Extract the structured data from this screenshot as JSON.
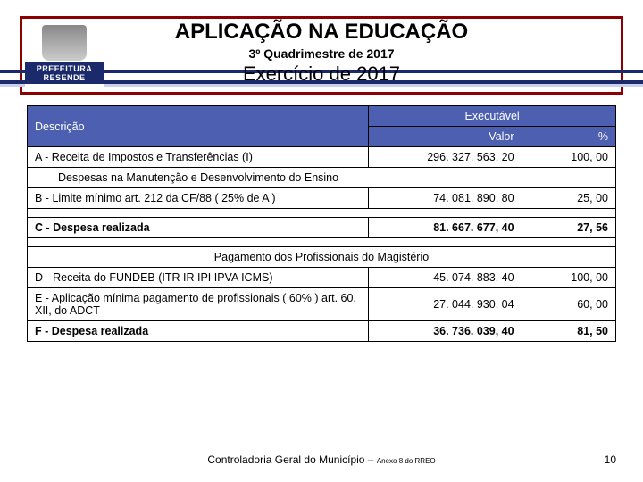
{
  "header": {
    "logo_line1": "PREFEITURA",
    "logo_line2": "RESENDE",
    "title": "APLICAÇÃO NA EDUCAÇÃO",
    "subtitle": "3º Quadrimestre de 2017",
    "exercise": "Exercício de 2017"
  },
  "table": {
    "head_desc": "Descrição",
    "head_exec": "Executável",
    "head_valor": "Valor",
    "head_pct": "%",
    "rows": [
      {
        "type": "data",
        "desc": "A  -  Receita de Impostos e Transferências (I)",
        "valor": "296. 327. 563, 20",
        "pct": "100, 00"
      },
      {
        "type": "section",
        "desc": "Despesas na Manutenção e Desenvolvimento do Ensino",
        "indent": true
      },
      {
        "type": "data",
        "desc": "B  -   Limite mínimo art. 212 da CF/88 ( 25% de A )",
        "valor": "74. 081. 890, 80",
        "pct": "25, 00"
      },
      {
        "type": "empty"
      },
      {
        "type": "data",
        "bold": true,
        "desc": "C  -  Despesa realizada",
        "valor": "81. 667. 677, 40",
        "pct": "27, 56"
      },
      {
        "type": "empty"
      },
      {
        "type": "section",
        "desc": "Pagamento dos Profissionais do Magistério",
        "center": true
      },
      {
        "type": "data",
        "desc": "D  -  Receita do FUNDEB (ITR IR IPI IPVA ICMS)",
        "valor": "45. 074. 883, 40",
        "pct": "100, 00"
      },
      {
        "type": "data",
        "desc": "E  -  Aplicação mínima pagamento de profissionais ( 60% )                     art. 60, XII, do ADCT",
        "valor": "27. 044. 930, 04",
        "pct": "60, 00"
      },
      {
        "type": "data",
        "bold": true,
        "desc": "F -    Despesa realizada",
        "valor": "36. 736. 039, 40",
        "pct": "81, 50"
      }
    ]
  },
  "footer": {
    "text": "Controladoria Geral do Município – ",
    "small": "Anexo 8 do RREO",
    "page": "10"
  },
  "colors": {
    "header_bg": "#4c5fb0",
    "border_red": "#8b0000",
    "bar_dark": "#1a2a6b",
    "bar_light": "#c8d0ec"
  }
}
